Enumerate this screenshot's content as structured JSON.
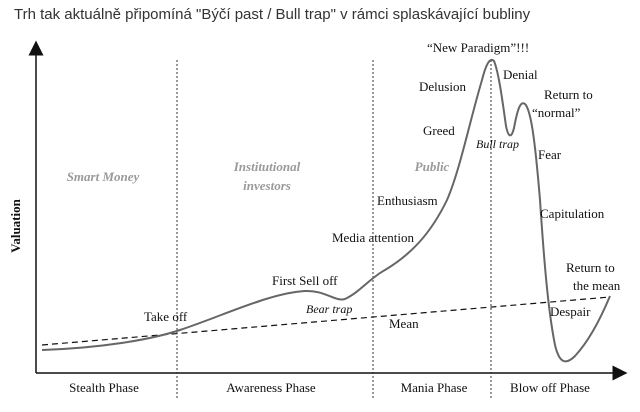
{
  "title": "Trh tak aktuálně připomíná \"Býčí past / Bull trap\" v rámci splaskávající bubliny",
  "y_axis_label": "Valuation",
  "investor_groups": {
    "smart_money": "Smart Money",
    "institutional_line1": "Institutional",
    "institutional_line2": "investors",
    "public": "Public"
  },
  "phases": {
    "stealth": "Stealth Phase",
    "awareness": "Awareness Phase",
    "mania": "Mania Phase",
    "blow_off": "Blow off Phase"
  },
  "labels": {
    "take_off": "Take off",
    "first_sell_off": "First Sell off",
    "bear_trap": "Bear trap",
    "mean": "Mean",
    "media_attention": "Media attention",
    "enthusiasm": "Enthusiasm",
    "greed": "Greed",
    "delusion": "Delusion",
    "new_paradigm": "“New Paradigm”!!!",
    "bull_trap": "Bull trap",
    "denial": "Denial",
    "return_to_normal_line1": "Return to",
    "return_to_normal_line2": "“normal”",
    "fear": "Fear",
    "capitulation": "Capitulation",
    "despair": "Despair",
    "return_to_mean_line1": "Return to",
    "return_to_mean_line2": "the mean"
  }
}
